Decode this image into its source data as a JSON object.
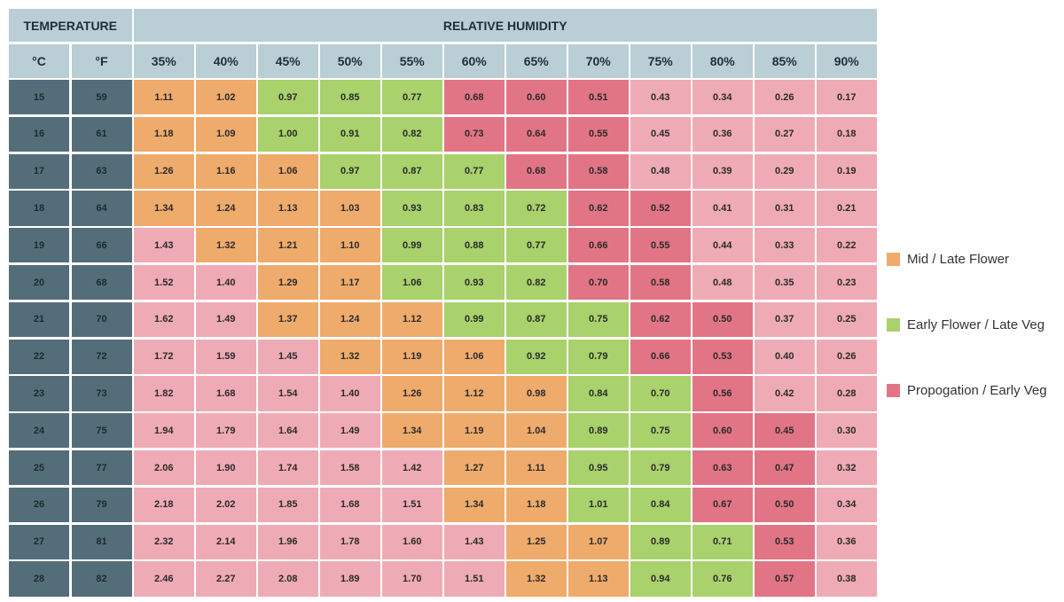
{
  "chart_data": {
    "type": "heatmap",
    "headers": {
      "temperature": "TEMPERATURE",
      "humidity": "RELATIVE HUMIDITY",
      "celsius": "°C",
      "fahrenheit": "°F"
    },
    "humidity": [
      "35%",
      "40%",
      "45%",
      "50%",
      "55%",
      "60%",
      "65%",
      "70%",
      "75%",
      "80%",
      "85%",
      "90%"
    ],
    "rows": [
      {
        "c": "15",
        "f": "59",
        "v": [
          "1.11",
          "1.02",
          "0.97",
          "0.85",
          "0.77",
          "0.68",
          "0.60",
          "0.51",
          "0.43",
          "0.34",
          "0.26",
          "0.17"
        ],
        "z": "OOGGGRRRPPPP"
      },
      {
        "c": "16",
        "f": "61",
        "v": [
          "1.18",
          "1.09",
          "1.00",
          "0.91",
          "0.82",
          "0.73",
          "0.64",
          "0.55",
          "0.45",
          "0.36",
          "0.27",
          "0.18"
        ],
        "z": "OOGGGRRRPPPP"
      },
      {
        "c": "17",
        "f": "63",
        "v": [
          "1.26",
          "1.16",
          "1.06",
          "0.97",
          "0.87",
          "0.77",
          "0.68",
          "0.58",
          "0.48",
          "0.39",
          "0.29",
          "0.19"
        ],
        "z": "OOOGGGRRPPPP"
      },
      {
        "c": "18",
        "f": "64",
        "v": [
          "1.34",
          "1.24",
          "1.13",
          "1.03",
          "0.93",
          "0.83",
          "0.72",
          "0.62",
          "0.52",
          "0.41",
          "0.31",
          "0.21"
        ],
        "z": "OOOOGGGRRPPP"
      },
      {
        "c": "19",
        "f": "66",
        "v": [
          "1.43",
          "1.32",
          "1.21",
          "1.10",
          "0.99",
          "0.88",
          "0.77",
          "0.66",
          "0.55",
          "0.44",
          "0.33",
          "0.22"
        ],
        "z": "POOOGGGRRPPP"
      },
      {
        "c": "20",
        "f": "68",
        "v": [
          "1.52",
          "1.40",
          "1.29",
          "1.17",
          "1.06",
          "0.93",
          "0.82",
          "0.70",
          "0.58",
          "0.48",
          "0.35",
          "0.23"
        ],
        "z": "PPOOGGGRRPPP"
      },
      {
        "c": "21",
        "f": "70",
        "v": [
          "1.62",
          "1.49",
          "1.37",
          "1.24",
          "1.12",
          "0.99",
          "0.87",
          "0.75",
          "0.62",
          "0.50",
          "0.37",
          "0.25"
        ],
        "z": "PPOOOGGGRRPP"
      },
      {
        "c": "22",
        "f": "72",
        "v": [
          "1.72",
          "1.59",
          "1.45",
          "1.32",
          "1.19",
          "1.06",
          "0.92",
          "0.79",
          "0.66",
          "0.53",
          "0.40",
          "0.26"
        ],
        "z": "PPPOOOGGRRPP"
      },
      {
        "c": "23",
        "f": "73",
        "v": [
          "1.82",
          "1.68",
          "1.54",
          "1.40",
          "1.26",
          "1.12",
          "0.98",
          "0.84",
          "0.70",
          "0.56",
          "0.42",
          "0.28"
        ],
        "z": "PPPPOOOGGRPP"
      },
      {
        "c": "24",
        "f": "75",
        "v": [
          "1.94",
          "1.79",
          "1.64",
          "1.49",
          "1.34",
          "1.19",
          "1.04",
          "0.89",
          "0.75",
          "0.60",
          "0.45",
          "0.30"
        ],
        "z": "PPPPOOOGGRRP"
      },
      {
        "c": "25",
        "f": "77",
        "v": [
          "2.06",
          "1.90",
          "1.74",
          "1.58",
          "1.42",
          "1.27",
          "1.11",
          "0.95",
          "0.79",
          "0.63",
          "0.47",
          "0.32"
        ],
        "z": "PPPPPOOGGRRP"
      },
      {
        "c": "26",
        "f": "79",
        "v": [
          "2.18",
          "2.02",
          "1.85",
          "1.68",
          "1.51",
          "1.34",
          "1.18",
          "1.01",
          "0.84",
          "0.67",
          "0.50",
          "0.34"
        ],
        "z": "PPPPPOOGGRRP"
      },
      {
        "c": "27",
        "f": "81",
        "v": [
          "2.32",
          "2.14",
          "1.96",
          "1.78",
          "1.60",
          "1.43",
          "1.25",
          "1.07",
          "0.89",
          "0.71",
          "0.53",
          "0.36"
        ],
        "z": "PPPPPPOOGGRP"
      },
      {
        "c": "28",
        "f": "82",
        "v": [
          "2.46",
          "2.27",
          "2.08",
          "1.89",
          "1.70",
          "1.51",
          "1.32",
          "1.13",
          "0.94",
          "0.76",
          "0.57",
          "0.38"
        ],
        "z": "PPPPPPOOGGRP"
      }
    ],
    "legend": [
      {
        "key": "O",
        "label": "Mid / Late Flower",
        "color": "#eeab6c"
      },
      {
        "key": "G",
        "label": "Early Flower / Late Veg",
        "color": "#a9d16c"
      },
      {
        "key": "R",
        "label": "Propogation / Early Veg",
        "color": "#e17586"
      }
    ],
    "colors": {
      "O": "#eeab6c",
      "G": "#a9d16c",
      "R": "#e17586",
      "P": "#efabb5",
      "temp": "#546e79",
      "header": "#b9ced5"
    }
  }
}
